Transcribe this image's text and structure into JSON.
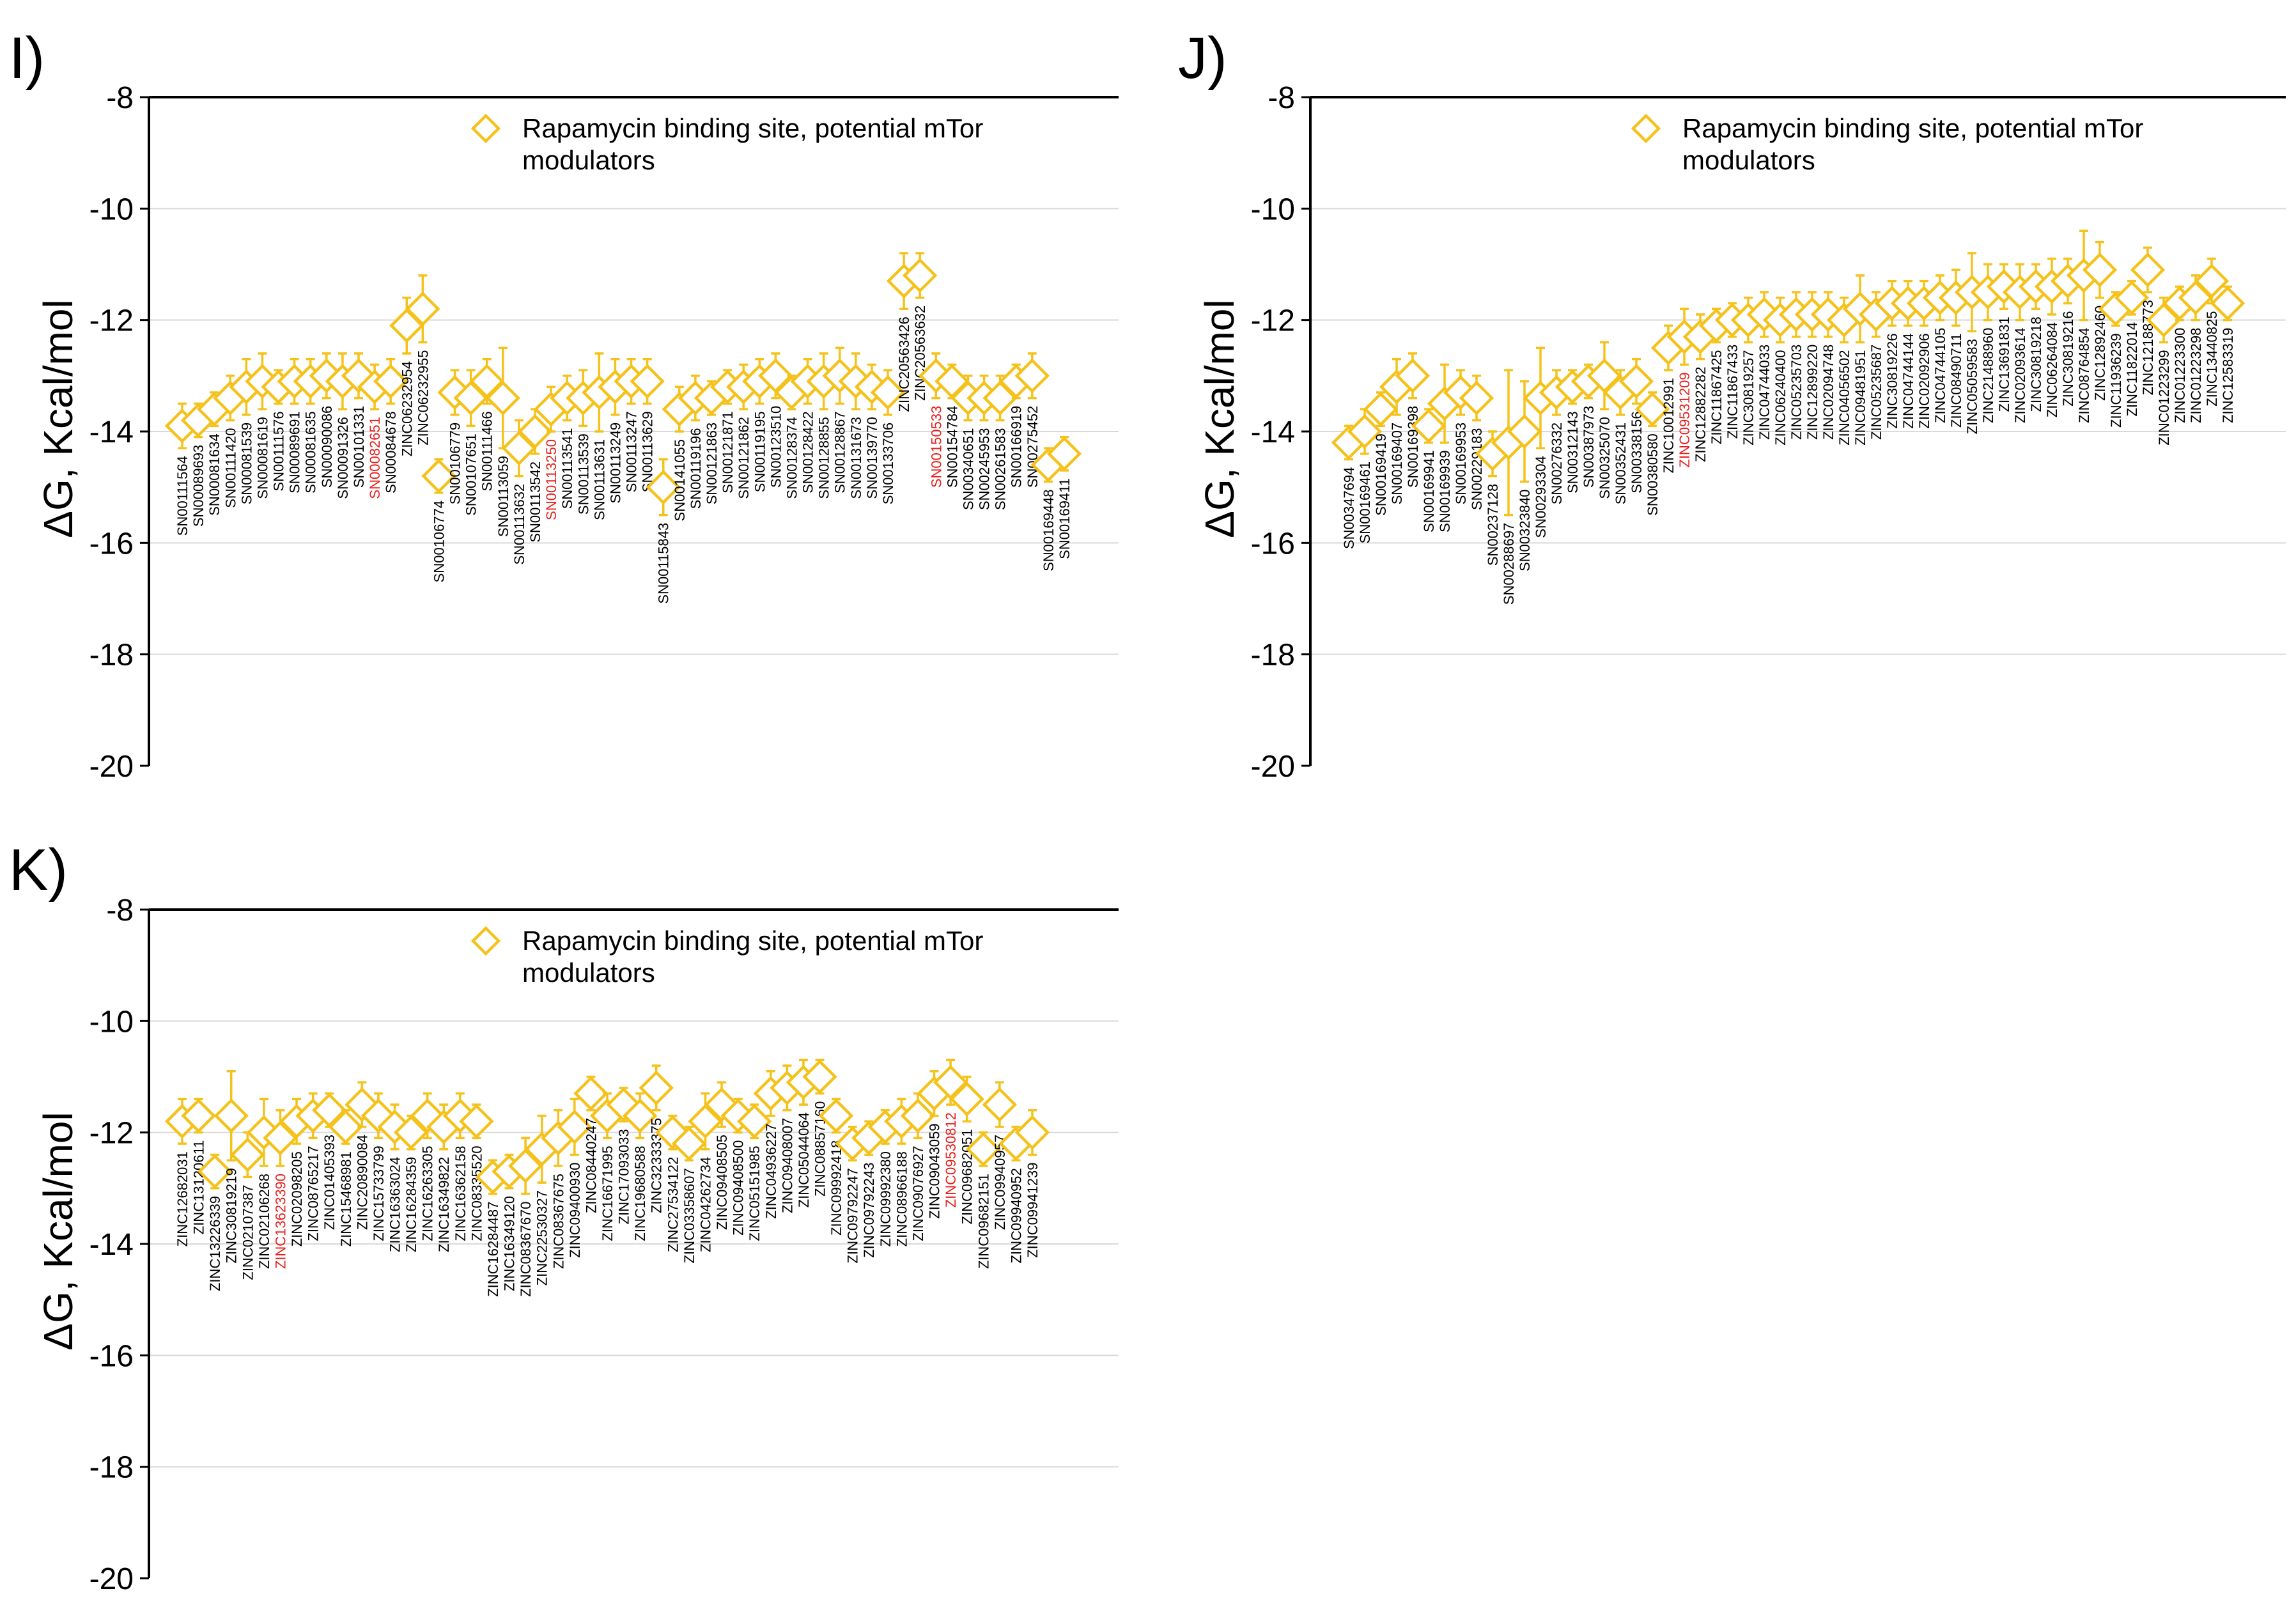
{
  "colors": {
    "marker": "#f5c21b",
    "highlight": "#e8201d",
    "grid": "#d9d9d9"
  },
  "chart_data": [
    {
      "panel": "I)",
      "type": "scatter",
      "ylabel": "ΔG, Kcal/mol",
      "ylim": [
        -20,
        -8
      ],
      "yticks": [
        -8,
        -10,
        -12,
        -14,
        -16,
        -18,
        -20
      ],
      "legend": [
        "Rapamycin binding site, potential mTor",
        "modulators"
      ],
      "legend_position": "top-right",
      "labels": [
        "SN00111564",
        "SN00089693",
        "SN00081634",
        "SN00111420",
        "SN00081539",
        "SN00081619",
        "SN00111576",
        "SN00089691",
        "SN00081635",
        "SN00090086",
        "SN00091326",
        "SN00101331",
        "SN00082651",
        "SN00084678",
        "ZINC06232954",
        "ZINC06232955",
        "SN00106774",
        "SN00106779",
        "SN00107651",
        "SN00111466",
        "SN00113059",
        "SN00113632",
        "SN00113542",
        "SN00113250",
        "SN00113541",
        "SN00113539",
        "SN00113631",
        "SN00113249",
        "SN00113247",
        "SN00113629",
        "SN00115843",
        "SN00141055",
        "SN00119196",
        "SN00121863",
        "SN00121871",
        "SN00121862",
        "SN00119195",
        "SN00123510",
        "SN00128374",
        "SN00128422",
        "SN00128855",
        "SN00128867",
        "SN00131673",
        "SN00139770",
        "SN00133706",
        "ZINC20563426",
        "ZINC20563632",
        "SN00150533",
        "SN00154784",
        "SN00340651",
        "SN00245953",
        "SN00261583",
        "SN00166919",
        "SN00275452",
        "SN00169448",
        "SN00169411"
      ],
      "values": [
        -13.9,
        -13.8,
        -13.6,
        -13.4,
        -13.2,
        -13.1,
        -13.2,
        -13.1,
        -13.1,
        -13.0,
        -13.1,
        -13.0,
        -13.2,
        -13.1,
        -12.1,
        -11.8,
        -14.8,
        -13.3,
        -13.4,
        -13.1,
        -13.4,
        -14.3,
        -14.0,
        -13.6,
        -13.4,
        -13.4,
        -13.3,
        -13.2,
        -13.1,
        -13.1,
        -15.0,
        -13.6,
        -13.4,
        -13.4,
        -13.2,
        -13.2,
        -13.1,
        -13.0,
        -13.3,
        -13.1,
        -13.1,
        -13.0,
        -13.1,
        -13.2,
        -13.3,
        -11.3,
        -11.2,
        -13.0,
        -13.1,
        -13.4,
        -13.4,
        -13.4,
        -13.1,
        -13.0,
        -14.6,
        -14.4
      ],
      "errors": [
        0.4,
        0.3,
        0.3,
        0.4,
        0.5,
        0.5,
        0.3,
        0.4,
        0.4,
        0.4,
        0.5,
        0.4,
        0.4,
        0.4,
        0.5,
        0.6,
        0.3,
        0.4,
        0.5,
        0.4,
        0.9,
        0.5,
        0.4,
        0.4,
        0.4,
        0.5,
        0.7,
        0.5,
        0.4,
        0.4,
        0.5,
        0.4,
        0.4,
        0.3,
        0.3,
        0.4,
        0.4,
        0.4,
        0.3,
        0.4,
        0.5,
        0.5,
        0.5,
        0.4,
        0.4,
        0.5,
        0.4,
        0.4,
        0.3,
        0.4,
        0.4,
        0.4,
        0.3,
        0.4,
        0.3,
        0.3
      ],
      "highlighted": [
        "SN00082651",
        "SN00113250",
        "SN00150533"
      ]
    },
    {
      "panel": "J)",
      "type": "scatter",
      "ylabel": "ΔG, Kcal/mol",
      "ylim": [
        -20,
        -8
      ],
      "yticks": [
        -8,
        -10,
        -12,
        -14,
        -16,
        -18,
        -20
      ],
      "legend": [
        "Rapamycin binding site, potential mTor",
        "modulators"
      ],
      "legend_position": "top-right",
      "labels": [
        "SN00347694",
        "SN00169461",
        "SN00169419",
        "SN00169407",
        "SN00169398",
        "SN00169941",
        "SN00169939",
        "SN00169953",
        "SN00229183",
        "SN00237128",
        "SN00288697",
        "SN00323840",
        "SN00293304",
        "SN00276332",
        "SN00312143",
        "SN00387973",
        "SN00325070",
        "SN00352431",
        "SN00338156",
        "SN00380580",
        "ZINC10012991",
        "ZINC09531209",
        "ZINC12882282",
        "ZINC11867425",
        "ZINC11867433",
        "ZINC30819257",
        "ZINC04744033",
        "ZINC06240400",
        "ZINC05235703",
        "ZINC12899220",
        "ZINC02094748",
        "ZINC04056502",
        "ZINC09481951",
        "ZINC05235687",
        "ZINC30819226",
        "ZINC04744144",
        "ZINC02092906",
        "ZINC04744105",
        "ZINC08490711",
        "ZINC05059583",
        "ZINC21488960",
        "ZINC13691831",
        "ZINC02093614",
        "ZINC30819218",
        "ZINC06264084",
        "ZINC30819216",
        "ZINC08764854",
        "ZINC12892460",
        "ZINC11936239",
        "ZINC11822014",
        "ZINC12188773",
        "ZINC01223299",
        "ZINC01223300",
        "ZINC01223298",
        "ZINC13440825",
        "ZINC12583319"
      ],
      "values": [
        -14.2,
        -14.0,
        -13.6,
        -13.2,
        -13.0,
        -13.9,
        -13.5,
        -13.3,
        -13.4,
        -14.4,
        -14.2,
        -14.0,
        -13.4,
        -13.3,
        -13.2,
        -13.1,
        -13.0,
        -13.3,
        -13.1,
        -13.6,
        -12.5,
        -12.3,
        -12.3,
        -12.1,
        -12.0,
        -12.0,
        -11.9,
        -12.0,
        -11.9,
        -11.9,
        -11.9,
        -12.0,
        -11.8,
        -11.9,
        -11.7,
        -11.7,
        -11.7,
        -11.6,
        -11.6,
        -11.5,
        -11.5,
        -11.4,
        -11.5,
        -11.4,
        -11.4,
        -11.3,
        -11.2,
        -11.1,
        -11.8,
        -11.6,
        -11.1,
        -12.0,
        -11.7,
        -11.6,
        -11.3,
        -11.7
      ],
      "errors": [
        0.3,
        0.4,
        0.3,
        0.5,
        0.4,
        0.3,
        0.7,
        0.4,
        0.4,
        0.4,
        1.3,
        0.9,
        0.9,
        0.4,
        0.3,
        0.3,
        0.6,
        0.4,
        0.4,
        0.3,
        0.4,
        0.5,
        0.4,
        0.3,
        0.3,
        0.4,
        0.4,
        0.4,
        0.4,
        0.4,
        0.4,
        0.4,
        0.6,
        0.4,
        0.4,
        0.4,
        0.4,
        0.4,
        0.5,
        0.7,
        0.5,
        0.4,
        0.5,
        0.4,
        0.5,
        0.4,
        0.8,
        0.5,
        0.3,
        0.3,
        0.4,
        0.4,
        0.3,
        0.4,
        0.4,
        0.3
      ],
      "highlighted": [
        "ZINC09531209"
      ]
    },
    {
      "panel": "K)",
      "type": "scatter",
      "ylabel": "ΔG, Kcal/mol",
      "ylim": [
        -20,
        -8
      ],
      "yticks": [
        -8,
        -10,
        -12,
        -14,
        -16,
        -18,
        -20
      ],
      "legend": [
        "Rapamycin binding site, potential mTor",
        "modulators"
      ],
      "legend_position": "top-right",
      "labels": [
        "ZINC12682031",
        "ZINC13120611",
        "ZINC13226339",
        "ZINC30819219",
        "ZINC02107387",
        "ZINC02106268",
        "ZINC13623390",
        "ZINC02098205",
        "ZINC08765217",
        "ZINC01405393",
        "ZINC15468981",
        "ZINC20890084",
        "ZINC15733799",
        "ZINC16363024",
        "ZINC16284359",
        "ZINC16263305",
        "ZINC16349822",
        "ZINC16362158",
        "ZINC08335520",
        "ZINC16284487",
        "ZINC16349120",
        "ZINC08367670",
        "ZINC22530327",
        "ZINC08367675",
        "ZINC09400930",
        "ZINC08440247",
        "ZINC16671995",
        "ZINC17093033",
        "ZINC19680588",
        "ZINC32333375",
        "ZINC27534122",
        "ZINC03358607",
        "ZINC04262734",
        "ZINC09408505",
        "ZINC09408500",
        "ZINC05151985",
        "ZINC04936227",
        "ZINC09408007",
        "ZINC05044064",
        "ZINC08857160",
        "ZINC09992418",
        "ZINC09792247",
        "ZINC09792243",
        "ZINC09992380",
        "ZINC08966188",
        "ZINC09076927",
        "ZINC09043059",
        "ZINC09530812",
        "ZINC09682051",
        "ZINC09682151",
        "ZINC09940957",
        "ZINC09940952",
        "ZINC09941239"
      ],
      "values": [
        -11.8,
        -11.7,
        -12.7,
        -11.7,
        -12.4,
        -12.0,
        -12.1,
        -11.8,
        -11.7,
        -11.6,
        -11.9,
        -11.5,
        -11.7,
        -11.9,
        -12.0,
        -11.7,
        -11.9,
        -11.7,
        -11.8,
        -12.8,
        -12.7,
        -12.6,
        -12.3,
        -12.1,
        -11.9,
        -11.3,
        -11.7,
        -11.5,
        -11.7,
        -11.2,
        -12.0,
        -12.2,
        -11.8,
        -11.5,
        -11.7,
        -11.8,
        -11.3,
        -11.2,
        -11.1,
        -11.0,
        -11.7,
        -12.2,
        -12.1,
        -11.9,
        -11.8,
        -11.7,
        -11.3,
        -11.1,
        -11.4,
        -12.3,
        -11.5,
        -12.2,
        -12.0
      ],
      "errors": [
        0.4,
        0.3,
        0.3,
        0.8,
        0.4,
        0.6,
        0.5,
        0.4,
        0.4,
        0.3,
        0.3,
        0.4,
        0.4,
        0.4,
        0.3,
        0.4,
        0.4,
        0.4,
        0.3,
        0.3,
        0.3,
        0.5,
        0.6,
        0.5,
        0.5,
        0.3,
        0.4,
        0.3,
        0.4,
        0.4,
        0.3,
        0.3,
        0.5,
        0.4,
        0.3,
        0.3,
        0.4,
        0.4,
        0.4,
        0.3,
        0.3,
        0.3,
        0.3,
        0.3,
        0.4,
        0.4,
        0.4,
        0.4,
        0.4,
        0.3,
        0.4,
        0.3,
        0.4
      ],
      "highlighted": [
        "ZINC13623390",
        "ZINC09530812"
      ]
    }
  ]
}
